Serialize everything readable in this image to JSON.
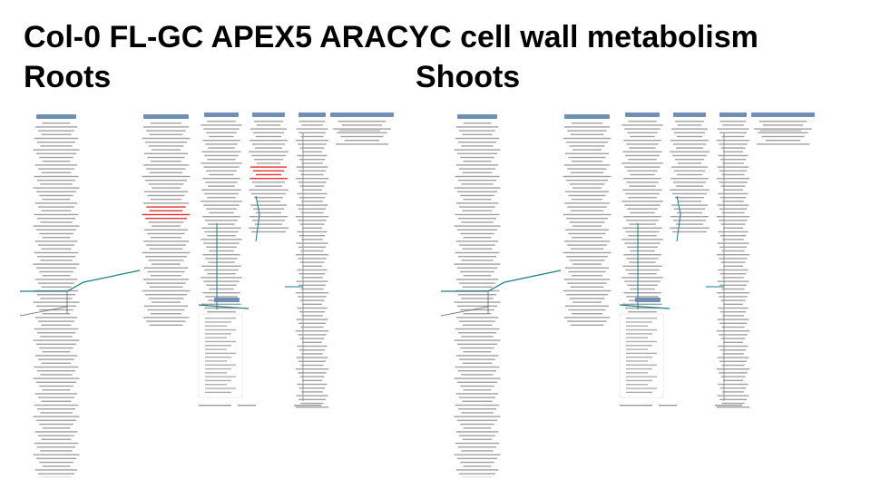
{
  "slide": {
    "title": "Col-0 FL-GC  APEX5 ARACYC cell wall metabolism",
    "roots_label": "Roots",
    "shoots_label": "Shoots"
  },
  "colors": {
    "pathway_header": "#6f8fb4",
    "highlight_red": "#e02020",
    "highlight_teal": "#1a7f8a",
    "text_gray": "#555555"
  },
  "diagrams": [
    {
      "panel": "roots",
      "highlighted": [
        "column-2",
        "column-4"
      ]
    },
    {
      "panel": "shoots",
      "highlighted": []
    }
  ]
}
